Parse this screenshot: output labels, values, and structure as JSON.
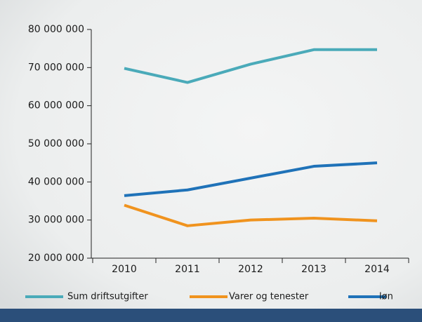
{
  "chart_data": {
    "type": "line",
    "categories": [
      "2010",
      "2011",
      "2012",
      "2013",
      "2014"
    ],
    "series": [
      {
        "name": "Sum driftsutgifter",
        "color": "#4aaab9",
        "values": [
          69800000,
          66100000,
          70900000,
          74700000,
          74700000
        ]
      },
      {
        "name": "Varer og tenester",
        "color": "#f0931e",
        "values": [
          33900000,
          28500000,
          30000000,
          30500000,
          29800000
        ]
      },
      {
        "name": "løn",
        "color": "#1f72b8",
        "values": [
          36400000,
          37900000,
          41000000,
          44100000,
          45000000
        ]
      }
    ],
    "ylim": [
      20000000,
      80000000
    ],
    "yticks": [
      {
        "value": 20000000,
        "label": "20 000 000"
      },
      {
        "value": 30000000,
        "label": "30 000 000"
      },
      {
        "value": 40000000,
        "label": "40 000 000"
      },
      {
        "value": 50000000,
        "label": "50 000 000"
      },
      {
        "value": 60000000,
        "label": "60 000 000"
      },
      {
        "value": 70000000,
        "label": "70 000 000"
      },
      {
        "value": 80000000,
        "label": "80 000 000"
      }
    ]
  }
}
